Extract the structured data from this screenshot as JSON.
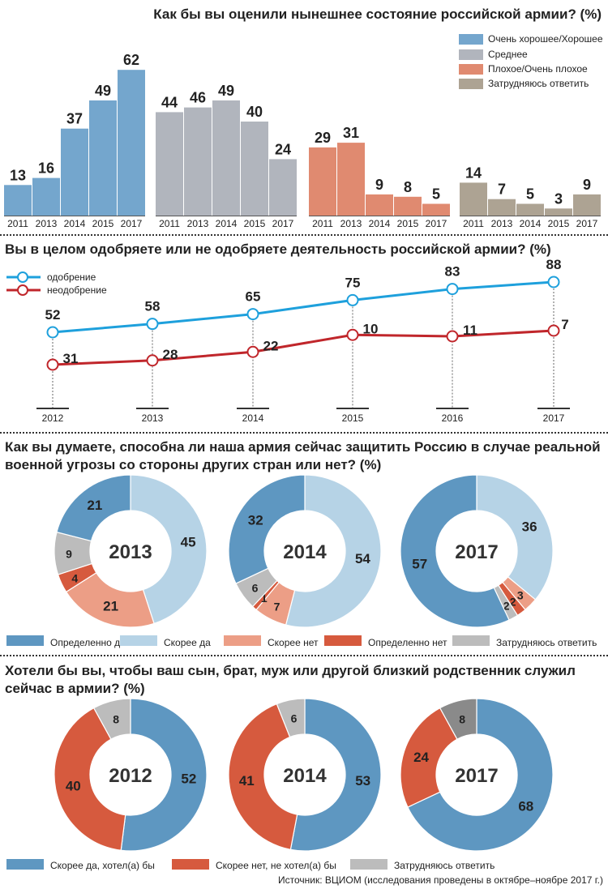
{
  "colors": {
    "good": "#74a6cd",
    "mid": "#b1b5bd",
    "bad": "#e08a70",
    "unsure": "#ada393",
    "approve": "#1ea0dc",
    "disapprove": "#c0262b",
    "def_yes": "#5e97c1",
    "rather_yes": "#b6d3e6",
    "rather_no": "#ec9e86",
    "def_no": "#d65a3e",
    "grey": "#bcbcbc",
    "dark_grey": "#8a8a8a"
  },
  "section1": {
    "title": "Как бы вы оценили нынешнее состояние российской армии? (%)",
    "legend": [
      "Очень хорошее/Хорошее",
      "Среднее",
      "Плохое/Очень плохое",
      "Затрудняюсь ответить"
    ]
  },
  "section2": {
    "title": "Вы в целом одобряете или не одобряете деятельность российской армии? (%)",
    "legend": [
      "одобрение",
      "неодобрение"
    ]
  },
  "section3": {
    "title_line1": "Как вы думаете, способна ли наша армия сейчас защитить Россию в случае реальной",
    "title_line2": "военной угрозы со стороны других стран или нет? (%)",
    "legend": [
      "Определенно да",
      "Скорее да",
      "Скорее нет",
      "Определенно нет",
      "Затрудняюсь ответить"
    ]
  },
  "section4": {
    "title_line1": "Хотели бы вы, чтобы ваш сын, брат, муж или другой близкий родственник служил",
    "title_line2": "сейчас в армии? (%)",
    "legend": [
      "Скорее да, хотел(а) бы",
      "Скорее нет, не хотел(а) бы",
      "Затрудняюсь ответить"
    ]
  },
  "source": "Источник: ВЦИОМ (исследования проведены в октябре–ноябре 2017 г.)",
  "chart_data": [
    {
      "type": "bar",
      "title": "Как бы вы оценили нынешнее состояние российской армии? (%)",
      "categories": [
        "2011",
        "2013",
        "2014",
        "2015",
        "2017"
      ],
      "ylim": [
        0,
        62
      ],
      "series": [
        {
          "name": "Очень хорошее/Хорошее",
          "values": [
            13,
            16,
            37,
            49,
            62
          ]
        },
        {
          "name": "Среднее",
          "values": [
            44,
            46,
            49,
            40,
            24
          ]
        },
        {
          "name": "Плохое/Очень плохое",
          "values": [
            29,
            31,
            9,
            8,
            5
          ]
        },
        {
          "name": "Затрудняюсь ответить",
          "values": [
            14,
            7,
            5,
            3,
            9
          ]
        }
      ]
    },
    {
      "type": "line",
      "title": "Вы в целом одобряете или не одобряете деятельность российской армии? (%)",
      "x": [
        "2012",
        "2013",
        "2014",
        "2015",
        "2016",
        "2017"
      ],
      "series": [
        {
          "name": "одобрение",
          "values": [
            52,
            58,
            65,
            75,
            83,
            88
          ]
        },
        {
          "name": "неодобрение",
          "values": [
            31,
            28,
            22,
            10,
            11,
            7
          ]
        }
      ]
    },
    {
      "type": "pie",
      "title": "Как вы думаете, способна ли наша армия сейчас защитить Россию в случае реальной военной угрозы со стороны других стран или нет? (%)",
      "labels": [
        "Определенно да",
        "Скорее да",
        "Скорее нет",
        "Определенно нет",
        "Затрудняюсь ответить"
      ],
      "pies": [
        {
          "year": "2013",
          "values": [
            21,
            45,
            21,
            4,
            9
          ]
        },
        {
          "year": "2014",
          "values": [
            32,
            54,
            7,
            1,
            6
          ]
        },
        {
          "year": "2017",
          "values": [
            57,
            36,
            3,
            2,
            2
          ]
        }
      ]
    },
    {
      "type": "pie",
      "title": "Хотели бы вы, чтобы ваш сын, брат, муж или другой близкий родственник служил сейчас в армии? (%)",
      "labels": [
        "Скорее да, хотел(а) бы",
        "Скорее нет, не хотел(а) бы",
        "Затрудняюсь ответить"
      ],
      "pies": [
        {
          "year": "2012",
          "values": [
            52,
            40,
            8
          ]
        },
        {
          "year": "2014",
          "values": [
            53,
            41,
            6
          ]
        },
        {
          "year": "2017",
          "values": [
            68,
            24,
            8
          ]
        }
      ]
    }
  ]
}
